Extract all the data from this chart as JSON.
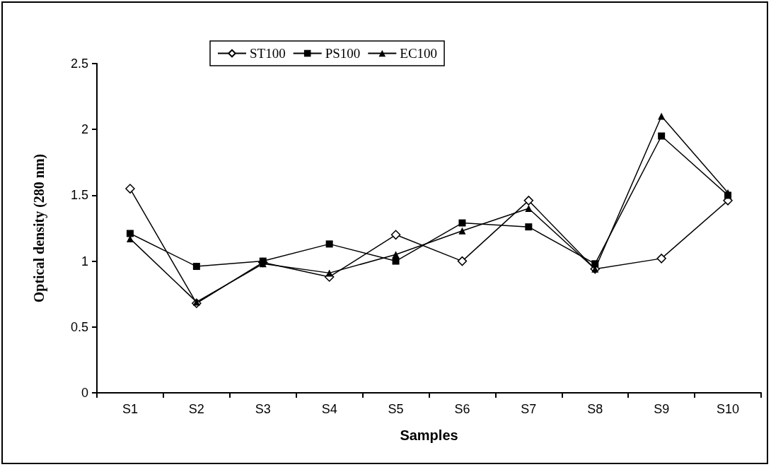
{
  "chart_data": {
    "type": "line",
    "xlabel": "Samples",
    "ylabel": "Optical density (280 nm)",
    "categories": [
      "S1",
      "S2",
      "S3",
      "S4",
      "S5",
      "S6",
      "S7",
      "S8",
      "S9",
      "S10"
    ],
    "series": [
      {
        "name": "ST100",
        "color": "#000000",
        "marker": "diamond",
        "values": [
          1.55,
          0.68,
          0.99,
          0.88,
          1.2,
          1.0,
          1.46,
          0.94,
          1.02,
          1.46
        ]
      },
      {
        "name": "PS100",
        "color": "#000000",
        "marker": "square",
        "values": [
          1.21,
          0.96,
          1.0,
          1.13,
          1.0,
          1.29,
          1.26,
          0.98,
          1.95,
          1.5
        ]
      },
      {
        "name": "EC100",
        "color": "#000000",
        "marker": "triangle",
        "values": [
          1.17,
          0.69,
          0.98,
          0.91,
          1.05,
          1.23,
          1.4,
          0.94,
          2.1,
          1.52
        ]
      }
    ],
    "ylim": [
      0,
      2.5
    ],
    "yticks": [
      0,
      0.5,
      1,
      1.5,
      2,
      2.5
    ],
    "grid": false,
    "legend": "top",
    "line_style": "solid"
  }
}
